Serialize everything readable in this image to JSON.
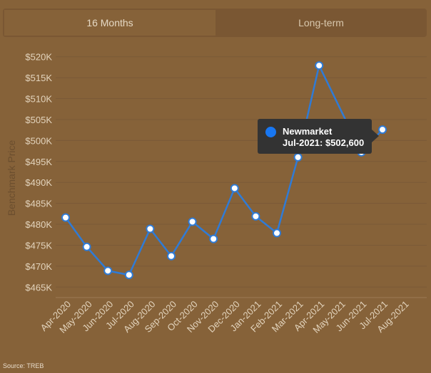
{
  "tabs": [
    {
      "label": "16 Months",
      "active": true
    },
    {
      "label": "Long-term",
      "active": false
    }
  ],
  "colors": {
    "background": "#866239",
    "line": "#2f7bd6",
    "marker_fill": "#ffffff",
    "tooltip_bg": "#333333",
    "tooltip_dot": "#1877f2"
  },
  "tooltip": {
    "series": "Newmarket",
    "text": "Jul-2021: $502,600"
  },
  "source": "Source: TREB",
  "chart_data": {
    "type": "line",
    "title": "",
    "xlabel": "",
    "ylabel": "Benchmark Price",
    "categories": [
      "Apr-2020",
      "May-2020",
      "Jun-2020",
      "Jul-2020",
      "Aug-2020",
      "Sep-2020",
      "Oct-2020",
      "Nov-2020",
      "Dec-2020",
      "Jan-2021",
      "Feb-2021",
      "Mar-2021",
      "Apr-2021",
      "May-2021",
      "Jun-2021",
      "Jul-2021",
      "Aug-2021"
    ],
    "ylim": [
      462500,
      522500
    ],
    "yticks": [
      465000,
      470000,
      475000,
      480000,
      485000,
      490000,
      495000,
      500000,
      505000,
      510000,
      515000,
      520000
    ],
    "ytick_labels": [
      "$465K",
      "$470K",
      "$475K",
      "$480K",
      "$485K",
      "$490K",
      "$495K",
      "$500K",
      "$505K",
      "$510K",
      "$515K",
      "$520K"
    ],
    "grid": "horizontal",
    "series": [
      {
        "name": "Newmarket",
        "values": [
          481600,
          474600,
          468900,
          467900,
          478900,
          472400,
          480600,
          476500,
          488600,
          481900,
          477900,
          496000,
          517900,
          null,
          497200,
          502600,
          null
        ]
      }
    ]
  }
}
